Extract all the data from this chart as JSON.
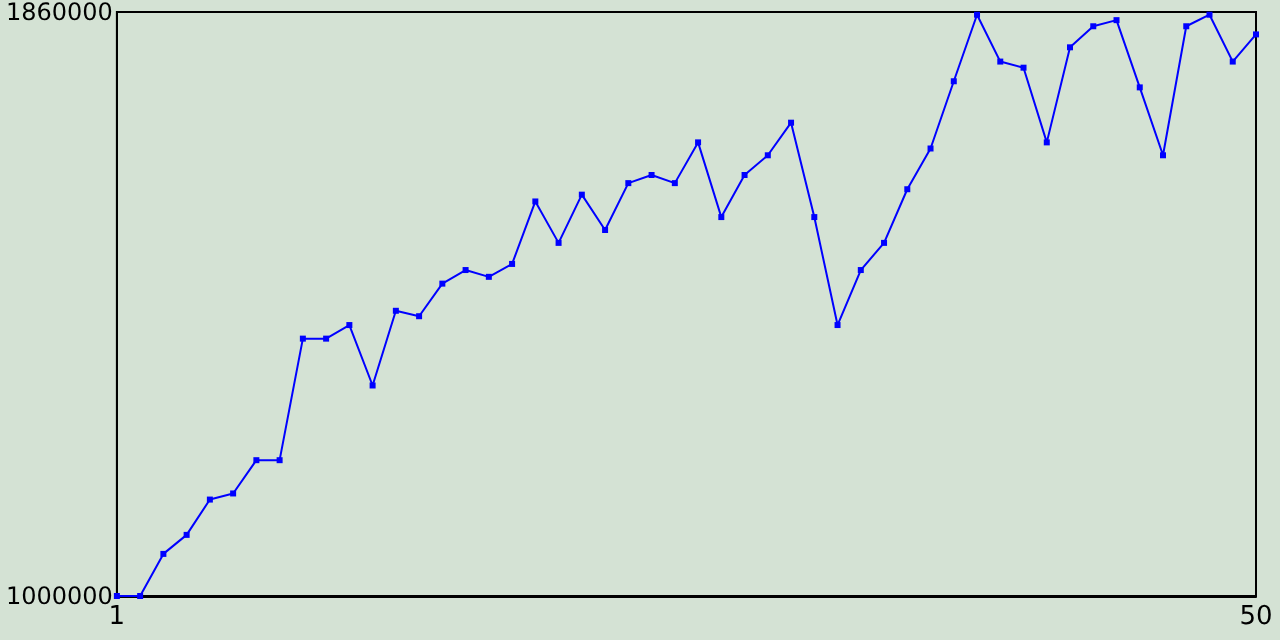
{
  "chart_data": {
    "type": "line",
    "x": [
      1,
      2,
      3,
      4,
      5,
      6,
      7,
      8,
      9,
      10,
      11,
      12,
      13,
      14,
      15,
      16,
      17,
      18,
      19,
      20,
      21,
      22,
      23,
      24,
      25,
      26,
      27,
      28,
      29,
      30,
      31,
      32,
      33,
      34,
      35,
      36,
      37,
      38,
      39,
      40,
      41,
      42,
      43,
      44,
      45,
      46,
      47,
      48,
      49,
      50
    ],
    "series": [
      {
        "color": "#0000ff",
        "values": [
          1000000,
          1000000,
          1062000,
          1090000,
          1142000,
          1151000,
          1200000,
          1200000,
          1379000,
          1379000,
          1399000,
          1310000,
          1420000,
          1412000,
          1460000,
          1480000,
          1470000,
          1489000,
          1581000,
          1520000,
          1591000,
          1539000,
          1608000,
          1620000,
          1608000,
          1668000,
          1558000,
          1620000,
          1649000,
          1697000,
          1558000,
          1399000,
          1480000,
          1520000,
          1599000,
          1659000,
          1758000,
          1856000,
          1787000,
          1778000,
          1668000,
          1808000,
          1839000,
          1848000,
          1749000,
          1649000,
          1839000,
          1856000,
          1787000,
          1827000
        ]
      }
    ],
    "xlim": [
      1,
      50
    ],
    "xticks": [
      1,
      50
    ],
    "ylim": [
      1000000,
      1860000
    ],
    "yticks": [
      1000000,
      1860000
    ],
    "grid": false,
    "marker": "square",
    "line_style": "solid"
  }
}
